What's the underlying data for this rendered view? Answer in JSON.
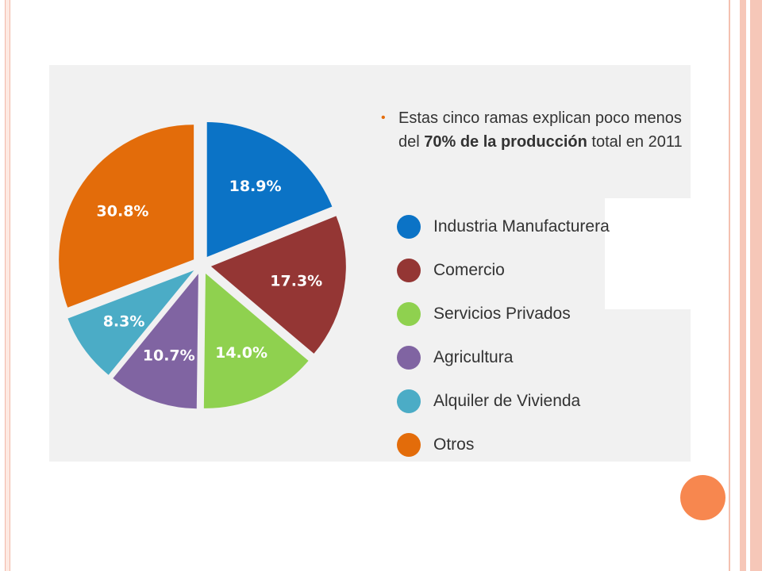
{
  "chart_data": {
    "type": "pie",
    "categories": [
      "Industria Manufacturera",
      "Comercio",
      "Servicios Privados",
      "Agricultura",
      "Alquiler de Vivienda",
      "Otros"
    ],
    "values": [
      18.9,
      17.3,
      14.0,
      10.7,
      8.3,
      30.8
    ],
    "value_labels": [
      "18.9%",
      "17.3%",
      "14.0%",
      "10.7%",
      "8.3%",
      "30.8%"
    ],
    "colors": [
      "#0b73c6",
      "#943634",
      "#8fd14f",
      "#8064a2",
      "#4bacc6",
      "#e36c0a"
    ],
    "legend_position": "right",
    "exploded": true
  },
  "note": {
    "line1": "Estas cinco ramas explican poco menos",
    "line2_pre": "del ",
    "line2_bold": "70% de la producción",
    "line2_post": " total en 2011"
  }
}
